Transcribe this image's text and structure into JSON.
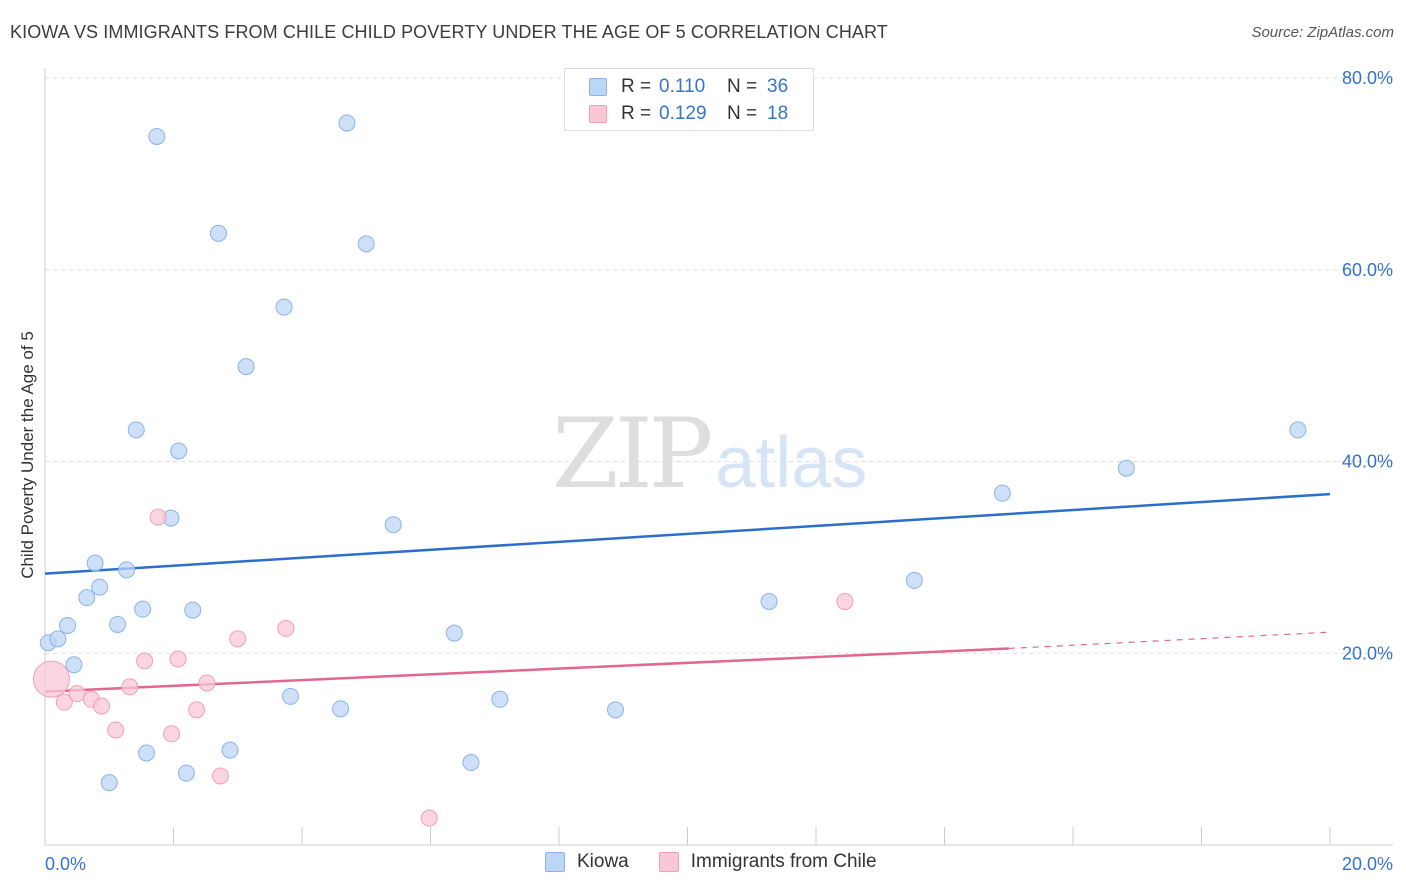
{
  "header": {
    "title": "KIOWA VS IMMIGRANTS FROM CHILE CHILD POVERTY UNDER THE AGE OF 5 CORRELATION CHART",
    "source": "Source: ZipAtlas.com"
  },
  "watermark": {
    "part1": "ZIP",
    "part2": "atlas"
  },
  "legend": {
    "rows": [
      {
        "r_label": "R =",
        "r_value": "0.110",
        "n_label": "N =",
        "n_value": "36"
      },
      {
        "r_label": "R =",
        "r_value": "0.129",
        "n_label": "N =",
        "n_value": "18"
      }
    ]
  },
  "bottom_legend": {
    "items": [
      "Kiowa",
      "Immigrants from Chile"
    ]
  },
  "colors": {
    "kiowa_fill": "#bcd6f5",
    "kiowa_stroke": "#8ab4e6",
    "kiowa_line": "#2b6fca",
    "chile_fill": "#f9c8d6",
    "chile_stroke": "#eda0b8",
    "chile_line": "#e2678f",
    "value_text": "#3673c9",
    "grid": "#dddddd"
  },
  "chart_data": {
    "type": "scatter",
    "title": "KIOWA VS IMMIGRANTS FROM CHILE CHILD POVERTY UNDER THE AGE OF 5 CORRELATION CHART",
    "xlabel": "",
    "ylabel": "Child Poverty Under the Age of 5",
    "xlim": [
      0,
      20
    ],
    "ylim": [
      0,
      80
    ],
    "x_tick_labels": [
      "0.0%",
      "20.0%"
    ],
    "y_tick_labels": [
      "20.0%",
      "40.0%",
      "60.0%",
      "80.0%"
    ],
    "y_tick_values": [
      20,
      40,
      60,
      80
    ],
    "grid": true,
    "legend_position": "top-center",
    "series": [
      {
        "name": "Kiowa",
        "r": 0.11,
        "n": 36,
        "points": [
          [
            0.05,
            21.1
          ],
          [
            0.2,
            21.5
          ],
          [
            0.35,
            22.9
          ],
          [
            0.45,
            18.8
          ],
          [
            0.65,
            25.8
          ],
          [
            0.78,
            29.4
          ],
          [
            0.85,
            26.9
          ],
          [
            1.0,
            6.5
          ],
          [
            1.13,
            23.0
          ],
          [
            1.27,
            28.7
          ],
          [
            1.42,
            43.3
          ],
          [
            1.52,
            24.6
          ],
          [
            1.58,
            9.6
          ],
          [
            1.74,
            73.9
          ],
          [
            1.96,
            34.1
          ],
          [
            2.08,
            41.1
          ],
          [
            2.2,
            7.5
          ],
          [
            2.3,
            24.5
          ],
          [
            2.7,
            63.8
          ],
          [
            2.88,
            9.9
          ],
          [
            3.13,
            49.9
          ],
          [
            3.72,
            56.1
          ],
          [
            3.82,
            15.5
          ],
          [
            4.6,
            14.2
          ],
          [
            4.7,
            75.3
          ],
          [
            5.0,
            62.7
          ],
          [
            5.42,
            33.4
          ],
          [
            6.37,
            22.1
          ],
          [
            6.63,
            8.6
          ],
          [
            7.08,
            15.2
          ],
          [
            8.88,
            14.1
          ],
          [
            11.27,
            25.4
          ],
          [
            13.53,
            27.6
          ],
          [
            14.9,
            36.7
          ],
          [
            16.83,
            39.3
          ],
          [
            19.5,
            43.3
          ]
        ],
        "trend": {
          "x": [
            0,
            20
          ],
          "y": [
            28.3,
            36.6
          ]
        }
      },
      {
        "name": "Immigrants from Chile",
        "r": 0.129,
        "n": 18,
        "points": [
          [
            0.1,
            17.3
          ],
          [
            0.3,
            14.9
          ],
          [
            0.5,
            15.8
          ],
          [
            0.72,
            15.2
          ],
          [
            0.88,
            14.5
          ],
          [
            1.1,
            12.0
          ],
          [
            1.32,
            16.5
          ],
          [
            1.55,
            19.2
          ],
          [
            1.76,
            34.2
          ],
          [
            1.97,
            11.6
          ],
          [
            2.07,
            19.4
          ],
          [
            2.36,
            14.1
          ],
          [
            2.52,
            16.9
          ],
          [
            2.73,
            7.2
          ],
          [
            3.0,
            21.5
          ],
          [
            3.75,
            22.6
          ],
          [
            5.98,
            2.8
          ],
          [
            12.45,
            25.4
          ]
        ],
        "trend": {
          "x": [
            0,
            15
          ],
          "y": [
            16.0,
            20.5
          ]
        },
        "trend_dashed": {
          "x": [
            15,
            20
          ],
          "y": [
            20.5,
            22.2
          ]
        }
      }
    ]
  }
}
